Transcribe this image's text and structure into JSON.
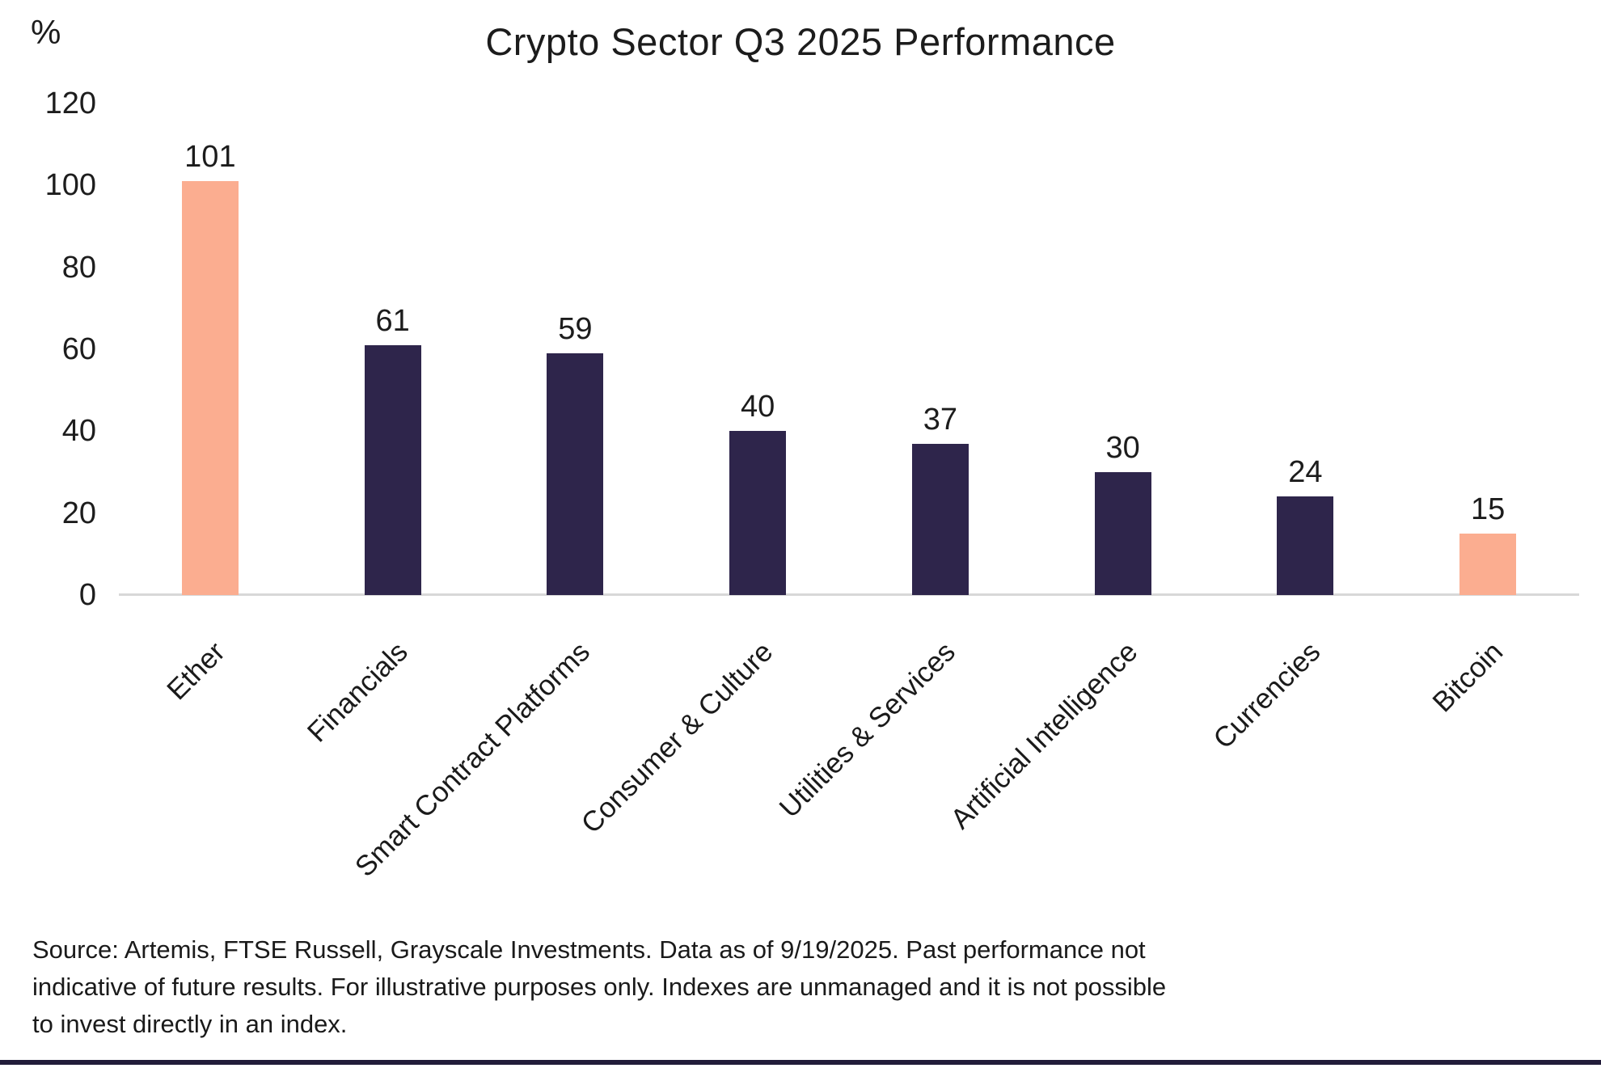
{
  "chart_data": {
    "type": "bar",
    "title": "Crypto Sector Q3 2025 Performance",
    "ylabel": "%",
    "xlabel": "",
    "ylim": [
      0,
      120
    ],
    "yticks": [
      0,
      20,
      40,
      60,
      80,
      100,
      120
    ],
    "grid": false,
    "legend": "none",
    "categories": [
      "Ether",
      "Financials",
      "Smart Contract Platforms",
      "Consumer & Culture",
      "Utilities & Services",
      "Artificial Intelligence",
      "Currencies",
      "Bitcoin"
    ],
    "values": [
      101,
      61,
      59,
      40,
      37,
      30,
      24,
      15
    ],
    "value_labels": [
      "101",
      "61",
      "59",
      "40",
      "37",
      "30",
      "24",
      "15"
    ],
    "bar_colors": [
      "#FBAD90",
      "#2E254B",
      "#2E254B",
      "#2E254B",
      "#2E254B",
      "#2E254B",
      "#2E254B",
      "#FBAD90"
    ],
    "colors": {
      "highlight_salmon": "#FBAD90",
      "primary_navy": "#2E254B",
      "axis_line": "#D8D8D8",
      "text": "#1C1C1C",
      "bottom_rule": "#221C3A"
    }
  },
  "source_note": {
    "lines": [
      "Source: Artemis, FTSE Russell, Grayscale Investments. Data as of 9/19/2025. Past performance not",
      "indicative of future results. For illustrative purposes only. Indexes are unmanaged and it is not possible",
      "to invest directly in an index."
    ]
  }
}
